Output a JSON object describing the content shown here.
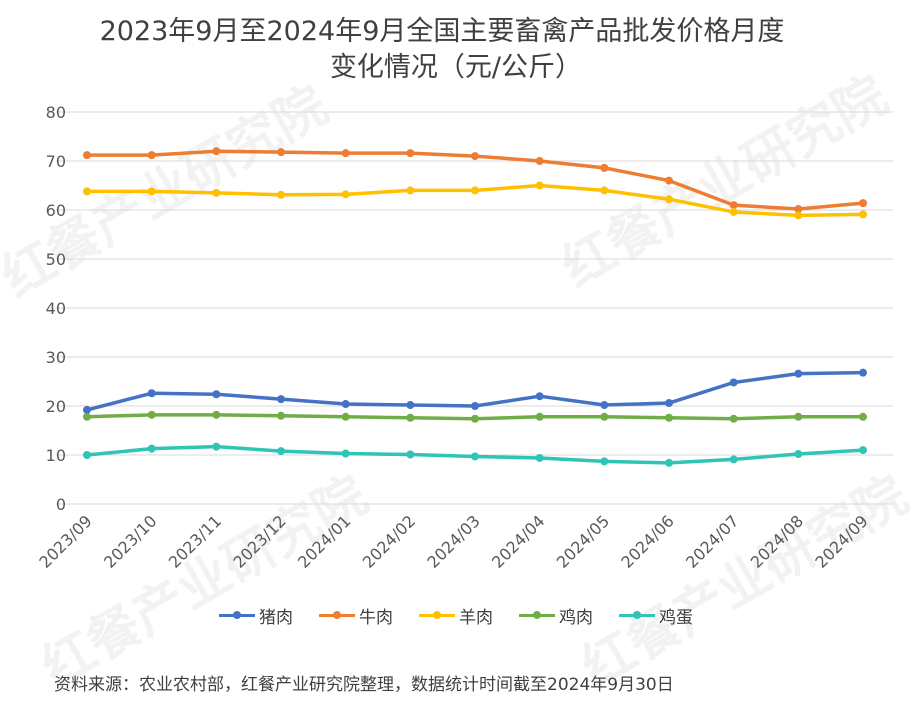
{
  "chart_data": {
    "type": "line",
    "title": "2023年9月至2024年9月全国主要畜禽产品批发价格月度",
    "subtitle": "变化情况（元/公斤）",
    "xlabel": "",
    "ylabel": "",
    "ylim": [
      0,
      80
    ],
    "yticks": [
      "0",
      "10",
      "20",
      "30",
      "40",
      "50",
      "60",
      "70",
      "80"
    ],
    "grid": true,
    "legend_position": "bottom",
    "categories": [
      "2023/09",
      "2023/10",
      "2023/11",
      "2023/12",
      "2024/01",
      "2024/02",
      "2024/03",
      "2024/04",
      "2024/05",
      "2024/06",
      "2024/07",
      "2024/08",
      "2024/09"
    ],
    "series": [
      {
        "name": "猪肉",
        "color": "#4472C4",
        "values": [
          19.2,
          22.6,
          22.4,
          21.4,
          20.4,
          20.2,
          20.0,
          22.0,
          20.2,
          20.6,
          24.8,
          26.6,
          26.8
        ]
      },
      {
        "name": "牛肉",
        "color": "#ED7D31",
        "values": [
          71.2,
          71.2,
          72.0,
          71.8,
          71.6,
          71.6,
          71.0,
          70.0,
          68.6,
          66.0,
          61.0,
          60.2,
          61.4
        ]
      },
      {
        "name": "羊肉",
        "color": "#FFC000",
        "values": [
          63.8,
          63.8,
          63.5,
          63.1,
          63.2,
          64.0,
          64.0,
          65.0,
          64.0,
          62.2,
          59.6,
          58.9,
          59.1
        ]
      },
      {
        "name": "鸡肉",
        "color": "#70AD47",
        "values": [
          17.8,
          18.2,
          18.2,
          18.0,
          17.8,
          17.6,
          17.4,
          17.8,
          17.8,
          17.6,
          17.4,
          17.8,
          17.8
        ]
      },
      {
        "name": "鸡蛋",
        "color": "#2EC4B6",
        "values": [
          10.0,
          11.3,
          11.7,
          10.8,
          10.3,
          10.1,
          9.7,
          9.4,
          8.7,
          8.4,
          9.1,
          10.2,
          11.0
        ]
      }
    ]
  },
  "source": "资料来源：农业农村部，红餐产业研究院整理，数据统计时间截至2024年9月30日",
  "watermark": "红餐产业研究院"
}
